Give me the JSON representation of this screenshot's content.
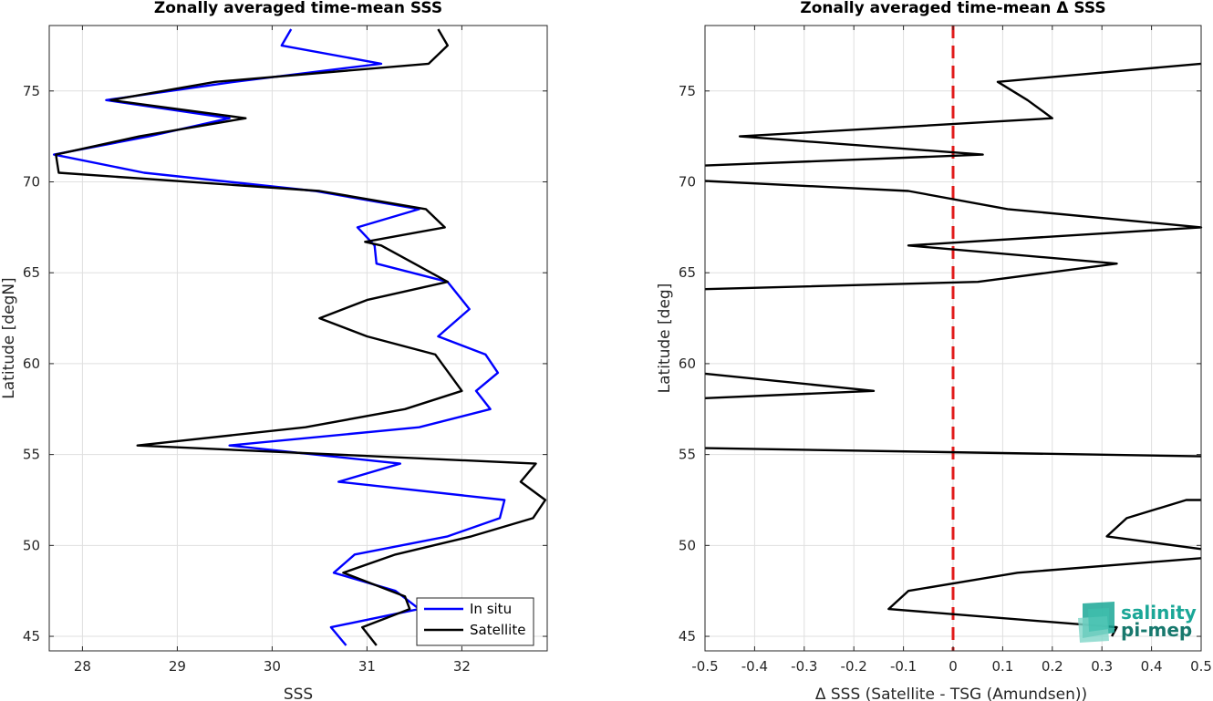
{
  "chart_data": [
    {
      "type": "line",
      "title": "Zonally averaged time-mean SSS",
      "xlabel": "SSS",
      "ylabel": "Latitude [degN]",
      "xlim": [
        27.65,
        32.9
      ],
      "ylim": [
        44.2,
        78.6
      ],
      "xticks": [
        28,
        29,
        30,
        31,
        32
      ],
      "yticks": [
        45,
        50,
        55,
        60,
        65,
        70,
        75
      ],
      "grid": true,
      "legend": "bottom-right",
      "series": [
        {
          "name": "In situ",
          "color": "#0000ff",
          "points": [
            [
              30.78,
              44.5
            ],
            [
              30.62,
              45.5
            ],
            [
              31.55,
              46.5
            ],
            [
              31.3,
              47.5
            ],
            [
              30.65,
              48.5
            ],
            [
              30.87,
              49.5
            ],
            [
              31.85,
              50.5
            ],
            [
              32.4,
              51.5
            ],
            [
              32.45,
              52.5
            ],
            [
              30.7,
              53.5
            ],
            [
              31.35,
              54.5
            ],
            [
              29.55,
              55.5
            ],
            [
              31.55,
              56.5
            ],
            [
              32.3,
              57.5
            ],
            [
              32.15,
              58.5
            ],
            [
              32.38,
              59.5
            ],
            [
              32.25,
              60.5
            ],
            [
              31.75,
              61.5
            ],
            [
              32.08,
              63.0
            ],
            [
              31.85,
              64.5
            ],
            [
              31.1,
              65.5
            ],
            [
              31.08,
              66.5
            ],
            [
              30.9,
              67.5
            ],
            [
              31.55,
              68.5
            ],
            [
              30.45,
              69.5
            ],
            [
              28.65,
              70.5
            ],
            [
              27.7,
              71.5
            ],
            [
              28.7,
              72.5
            ],
            [
              29.55,
              73.5
            ],
            [
              28.25,
              74.5
            ],
            [
              29.6,
              75.5
            ],
            [
              31.15,
              76.5
            ],
            [
              30.1,
              77.5
            ],
            [
              30.2,
              78.4
            ]
          ]
        },
        {
          "name": "Satellite",
          "color": "#000000",
          "points": [
            [
              31.1,
              44.5
            ],
            [
              30.95,
              45.5
            ],
            [
              31.45,
              46.5
            ],
            [
              31.4,
              47.2
            ],
            [
              30.75,
              48.5
            ],
            [
              31.3,
              49.5
            ],
            [
              32.1,
              50.5
            ],
            [
              32.75,
              51.5
            ],
            [
              32.88,
              52.5
            ],
            [
              32.62,
              53.5
            ],
            [
              32.78,
              54.5
            ],
            [
              28.58,
              55.5
            ],
            [
              30.35,
              56.5
            ],
            [
              31.4,
              57.5
            ],
            [
              32.0,
              58.5
            ],
            [
              31.72,
              60.5
            ],
            [
              31.0,
              61.5
            ],
            [
              30.5,
              62.5
            ],
            [
              31.0,
              63.5
            ],
            [
              31.85,
              64.5
            ],
            [
              31.5,
              65.5
            ],
            [
              31.15,
              66.5
            ],
            [
              30.98,
              66.7
            ],
            [
              31.82,
              67.5
            ],
            [
              31.62,
              68.5
            ],
            [
              30.5,
              69.5
            ],
            [
              27.75,
              70.5
            ],
            [
              27.72,
              71.5
            ],
            [
              28.6,
              72.5
            ],
            [
              29.72,
              73.5
            ],
            [
              28.3,
              74.5
            ],
            [
              29.4,
              75.5
            ],
            [
              31.65,
              76.5
            ],
            [
              31.85,
              77.5
            ],
            [
              31.75,
              78.4
            ]
          ]
        }
      ],
      "legend_labels": [
        "In situ",
        "Satellite"
      ]
    },
    {
      "type": "line",
      "title": "Zonally averaged time-mean Δ SSS",
      "xlabel": "Δ SSS (Satellite - TSG (Amundsen))",
      "ylabel": "Latitude [deg]",
      "xlim": [
        -0.5,
        0.5
      ],
      "ylim": [
        44.2,
        78.6
      ],
      "xticks": [
        -0.5,
        -0.4,
        -0.3,
        -0.2,
        -0.1,
        0,
        0.1,
        0.2,
        0.3,
        0.4,
        0.5
      ],
      "xtick_labels": [
        "-0.5",
        "-0.4",
        "-0.3",
        "-0.2",
        "-0.1",
        "0",
        "0.1",
        "0.2",
        "0.3",
        "0.4",
        "0.5"
      ],
      "yticks": [
        45,
        50,
        55,
        60,
        65,
        70,
        75
      ],
      "grid": true,
      "reference_line": {
        "x": 0,
        "color": "#e11b1b",
        "style": "dashed"
      },
      "series": [
        {
          "color": "#000000",
          "segments": [
            [
              [
                0.32,
                45.0
              ],
              [
                0.33,
                45.5
              ],
              [
                -0.13,
                46.5
              ],
              [
                -0.09,
                47.5
              ],
              [
                0.13,
                48.5
              ],
              [
                0.5,
                49.3
              ]
            ],
            [
              [
                0.5,
                49.8
              ],
              [
                0.31,
                50.5
              ],
              [
                0.35,
                51.5
              ],
              [
                0.47,
                52.5
              ],
              [
                0.5,
                52.5
              ]
            ],
            [
              [
                -0.5,
                55.35
              ],
              [
                0.5,
                54.9
              ]
            ],
            [
              [
                -0.5,
                58.1
              ],
              [
                -0.16,
                58.5
              ],
              [
                -0.5,
                59.45
              ]
            ],
            [
              [
                -0.5,
                64.1
              ],
              [
                0.05,
                64.5
              ],
              [
                0.33,
                65.5
              ],
              [
                -0.09,
                66.5
              ],
              [
                0.5,
                67.5
              ],
              [
                0.11,
                68.5
              ],
              [
                -0.09,
                69.5
              ],
              [
                -0.5,
                70.05
              ]
            ],
            [
              [
                -0.5,
                70.9
              ],
              [
                0.06,
                71.5
              ],
              [
                -0.43,
                72.5
              ],
              [
                0.2,
                73.5
              ],
              [
                0.15,
                74.5
              ],
              [
                0.09,
                75.5
              ],
              [
                0.5,
                76.5
              ]
            ]
          ]
        }
      ]
    }
  ],
  "logo": {
    "line1": "salinity",
    "line2": "pi-mep"
  }
}
